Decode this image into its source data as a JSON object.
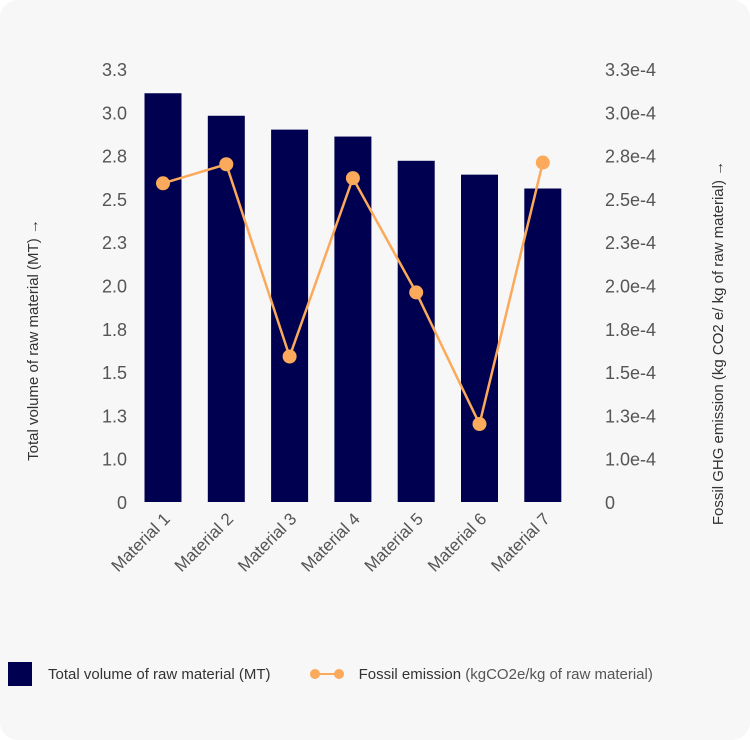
{
  "chart_data": {
    "type": "bar+line",
    "categories": [
      "Material 1",
      "Material 2",
      "Material 3",
      "Material 4",
      "Material 5",
      "Material 6",
      "Material 7"
    ],
    "series": [
      {
        "name": "Total volume of raw material (MT)",
        "type": "bar",
        "axis": "left",
        "color": "#000050",
        "values": [
          3.11,
          2.98,
          2.9,
          2.86,
          2.72,
          2.64,
          2.56
        ]
      },
      {
        "name": "Fossil emission (kgCO2e/kg of raw material)",
        "type": "line",
        "axis": "right",
        "color": "#FBA95A",
        "values": [
          0.000259,
          0.00027,
          0.000159,
          0.000262,
          0.000196,
          0.00012,
          0.000271
        ]
      }
    ],
    "left_axis": {
      "label": "Total volume of raw material (MT) →",
      "ticks": [
        0,
        1.0,
        1.25,
        1.5,
        1.75,
        2.0,
        2.25,
        2.5,
        2.75,
        3.0,
        3.25
      ],
      "tick_labels": [
        "0",
        "1.0",
        "1.3",
        "1.5",
        "1.8",
        "2.0",
        "2.3",
        "2.5",
        "2.8",
        "3.0",
        "3.3"
      ]
    },
    "right_axis": {
      "label": "Fossil GHG emission (kg CO2 e/ kg of raw material) →",
      "ticks": [
        0,
        0.0001,
        0.000125,
        0.00015,
        0.000175,
        0.0002,
        0.000225,
        0.00025,
        0.000275,
        0.0003,
        0.000325
      ],
      "tick_labels": [
        "0",
        "1.0e-4",
        "1.3e-4",
        "1.5e-4",
        "1.8e-4",
        "2.0e-4",
        "2.3e-4",
        "2.5e-4",
        "2.8e-4",
        "3.0e-4",
        "3.3e-4"
      ]
    },
    "grid": false,
    "legend": {
      "position": "bottom",
      "bar_label": "Total volume of raw material (MT)",
      "line_label_main": "Fossil emission",
      "line_label_unit": "(kgCO2e/kg of raw material)"
    }
  }
}
